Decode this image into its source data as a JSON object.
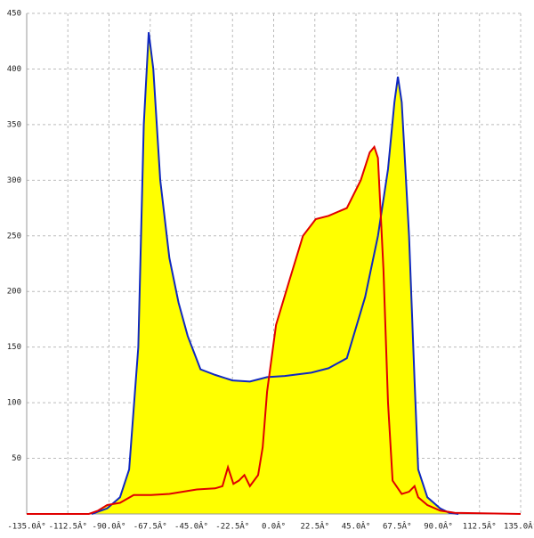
{
  "chart_data": {
    "type": "area",
    "fill_color": "#ffff00",
    "grid": true,
    "xlim": [
      -135,
      135
    ],
    "ylim": [
      0,
      450
    ],
    "xticks": [
      {
        "value": -135,
        "label": "-135.0Â°"
      },
      {
        "value": -112.5,
        "label": "-112.5Â°"
      },
      {
        "value": -90,
        "label": "-90.0Â°"
      },
      {
        "value": -67.5,
        "label": "-67.5Â°"
      },
      {
        "value": -45,
        "label": "-45.0Â°"
      },
      {
        "value": -22.5,
        "label": "-22.5Â°"
      },
      {
        "value": 0,
        "label": "0.0Â°"
      },
      {
        "value": 22.5,
        "label": "22.5Â°"
      },
      {
        "value": 45,
        "label": "45.0Â°"
      },
      {
        "value": 67.5,
        "label": "67.5Â°"
      },
      {
        "value": 90,
        "label": "90.0Â°"
      },
      {
        "value": 112.5,
        "label": "112.5Â°"
      },
      {
        "value": 135,
        "label": "135.0Â°"
      }
    ],
    "yticks": [
      50,
      100,
      150,
      200,
      250,
      300,
      350,
      400,
      450
    ],
    "series": [
      {
        "color": "#1028c0",
        "x": [
          -99.5,
          -91,
          -84,
          -79,
          -74,
          -71,
          -68.3,
          -65.8,
          -62,
          -57,
          -52,
          -47,
          -40,
          -32,
          -22.5,
          -13,
          -3.6,
          6,
          20.6,
          30,
          40,
          50,
          57,
          62.5,
          66,
          67.9,
          70,
          74,
          77,
          79,
          84,
          91,
          96,
          101
        ],
        "values": [
          0,
          5,
          15,
          40,
          150,
          350,
          433,
          400,
          300,
          230,
          190,
          160,
          130,
          125,
          120,
          119,
          123,
          124,
          127,
          131,
          140,
          195,
          250,
          310,
          370,
          393,
          370,
          250,
          120,
          40,
          15,
          5,
          1,
          0
        ]
      },
      {
        "color": "#e00000",
        "x": [
          -135,
          -101,
          -96,
          -91,
          -84,
          -76.5,
          -67,
          -57,
          -42,
          -32,
          -28,
          -25,
          -22,
          -19,
          -16,
          -13,
          -8.5,
          -6,
          -3.6,
          1.3,
          8.6,
          16,
          23,
          30,
          40,
          47.6,
          52.5,
          55,
          57,
          60,
          62.5,
          65,
          70,
          74,
          77,
          79,
          84,
          91,
          99,
          135
        ],
        "values": [
          0,
          0,
          3,
          8,
          10,
          17,
          17,
          18,
          22,
          23,
          25,
          42,
          27,
          30,
          35,
          25,
          35,
          60,
          110,
          170,
          210,
          250,
          265,
          268,
          275,
          300,
          325,
          330,
          320,
          220,
          100,
          30,
          18,
          20,
          25,
          15,
          8,
          3,
          1,
          0
        ]
      }
    ]
  }
}
